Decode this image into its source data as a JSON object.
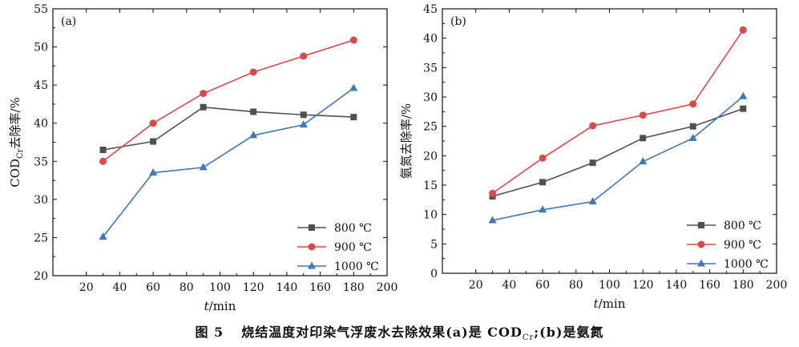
{
  "chart_data": [
    {
      "type": "line",
      "panel_label": "(a)",
      "x": [
        30,
        60,
        90,
        120,
        150,
        180
      ],
      "xlim": [
        0,
        200
      ],
      "xticks": [
        20,
        40,
        60,
        80,
        100,
        120,
        140,
        160,
        180,
        200
      ],
      "ylim": [
        20,
        55
      ],
      "yticks": [
        20,
        25,
        30,
        35,
        40,
        45,
        50,
        55
      ],
      "xlabel_italic": "t",
      "xlabel_unit": "/min",
      "ylabel_main": "COD",
      "ylabel_sub": "Cr",
      "ylabel_rest": "去除率/%",
      "legend_position": "bottom-right",
      "series": [
        {
          "name": "800 ℃",
          "color": "#505050",
          "marker": "square",
          "values": [
            36.5,
            37.6,
            42.1,
            41.5,
            41.1,
            40.8
          ]
        },
        {
          "name": "900 ℃",
          "color": "#d94a4a",
          "marker": "circle",
          "values": [
            35.0,
            40.0,
            43.9,
            46.7,
            48.8,
            50.9
          ]
        },
        {
          "name": "1000 ℃",
          "color": "#3f78b8",
          "marker": "triangle",
          "values": [
            25.1,
            33.5,
            34.2,
            38.4,
            39.8,
            44.6
          ]
        }
      ]
    },
    {
      "type": "line",
      "panel_label": "(b)",
      "x": [
        30,
        60,
        90,
        120,
        150,
        180
      ],
      "xlim": [
        0,
        200
      ],
      "xticks": [
        20,
        40,
        60,
        80,
        100,
        120,
        140,
        160,
        180,
        200
      ],
      "ylim": [
        0,
        45
      ],
      "yticks": [
        0,
        5,
        10,
        15,
        20,
        25,
        30,
        35,
        40,
        45
      ],
      "xlabel_italic": "t",
      "xlabel_unit": "/min",
      "ylabel": "氨氮去除率/%",
      "legend_position": "bottom-right",
      "series": [
        {
          "name": "800 ℃",
          "color": "#505050",
          "marker": "square",
          "values": [
            13.1,
            15.5,
            18.8,
            23.0,
            25.0,
            28.0
          ]
        },
        {
          "name": "900 ℃",
          "color": "#d94a4a",
          "marker": "circle",
          "values": [
            13.6,
            19.6,
            25.1,
            26.9,
            28.8,
            41.4
          ]
        },
        {
          "name": "1000 ℃",
          "color": "#3f78b8",
          "marker": "triangle",
          "values": [
            9.0,
            10.8,
            12.2,
            19.0,
            23.0,
            30.1
          ]
        }
      ]
    }
  ],
  "caption": {
    "figure_number": "图 5",
    "text_part1": "烧结温度对印染气浮废水去除效果(a)是 COD",
    "text_sub": "Cr",
    "text_part2": ";(b)是氨氮"
  }
}
